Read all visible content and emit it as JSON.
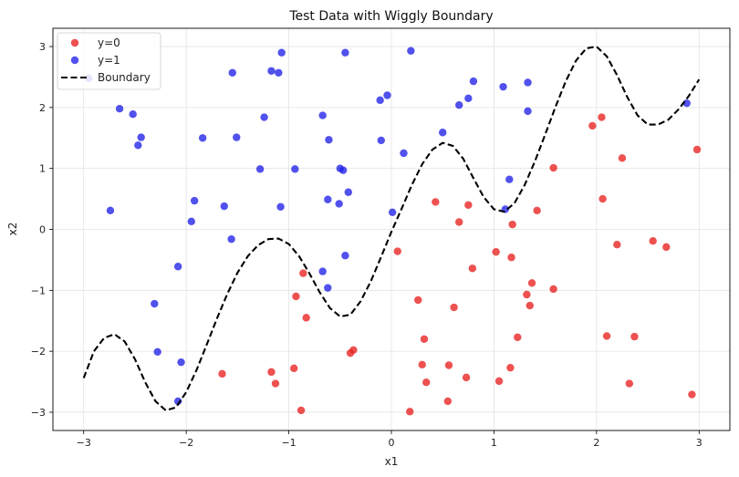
{
  "chart_data": {
    "type": "scatter",
    "title": "Test Data with Wiggly Boundary",
    "xlabel": "x1",
    "ylabel": "x2",
    "xlim": [
      -3.3,
      3.3
    ],
    "ylim": [
      -3.3,
      3.3
    ],
    "xticks": [
      -3,
      -2,
      -1,
      0,
      1,
      2,
      3
    ],
    "yticks": [
      -3,
      -2,
      -1,
      0,
      1,
      2,
      3
    ],
    "grid": true,
    "legend_position": "top-left",
    "series": [
      {
        "name": "y=0",
        "kind": "points",
        "color": "#e8201f",
        "points": [
          [
            -1.65,
            -2.37
          ],
          [
            -1.17,
            -2.34
          ],
          [
            -1.13,
            -2.53
          ],
          [
            -0.95,
            -2.28
          ],
          [
            -0.88,
            -2.97
          ],
          [
            -0.93,
            -1.1
          ],
          [
            -0.86,
            -0.72
          ],
          [
            -0.83,
            -1.45
          ],
          [
            -0.4,
            -2.03
          ],
          [
            -0.37,
            -1.98
          ],
          [
            0.06,
            -0.36
          ],
          [
            0.18,
            -2.99
          ],
          [
            0.26,
            -1.16
          ],
          [
            0.3,
            -2.22
          ],
          [
            0.32,
            -1.8
          ],
          [
            0.34,
            -2.51
          ],
          [
            0.43,
            0.45
          ],
          [
            0.55,
            -2.82
          ],
          [
            0.56,
            -2.23
          ],
          [
            0.61,
            -1.28
          ],
          [
            0.66,
            0.12
          ],
          [
            0.73,
            -2.43
          ],
          [
            0.75,
            0.4
          ],
          [
            0.79,
            -0.64
          ],
          [
            1.02,
            -0.37
          ],
          [
            1.05,
            -2.49
          ],
          [
            1.16,
            -2.27
          ],
          [
            1.17,
            -0.46
          ],
          [
            1.18,
            0.08
          ],
          [
            1.23,
            -1.77
          ],
          [
            1.32,
            -1.07
          ],
          [
            1.35,
            -1.25
          ],
          [
            1.37,
            -0.88
          ],
          [
            1.42,
            0.31
          ],
          [
            1.58,
            1.01
          ],
          [
            1.58,
            -0.98
          ],
          [
            1.96,
            1.7
          ],
          [
            2.05,
            1.84
          ],
          [
            2.06,
            0.5
          ],
          [
            2.1,
            -1.75
          ],
          [
            2.2,
            -0.25
          ],
          [
            2.25,
            1.17
          ],
          [
            2.32,
            -2.53
          ],
          [
            2.37,
            -1.76
          ],
          [
            2.55,
            -0.19
          ],
          [
            2.68,
            -0.29
          ],
          [
            2.93,
            -2.71
          ],
          [
            2.98,
            1.31
          ]
        ]
      },
      {
        "name": "y=1",
        "kind": "points",
        "color": "#2020e8",
        "points": [
          [
            -2.95,
            2.48
          ],
          [
            -2.74,
            0.31
          ],
          [
            -2.65,
            1.98
          ],
          [
            -2.52,
            1.89
          ],
          [
            -2.47,
            1.38
          ],
          [
            -2.44,
            1.51
          ],
          [
            -2.31,
            -1.22
          ],
          [
            -2.28,
            -2.01
          ],
          [
            -2.08,
            -0.61
          ],
          [
            -2.08,
            -2.82
          ],
          [
            -2.05,
            -2.18
          ],
          [
            -1.95,
            0.13
          ],
          [
            -1.92,
            0.47
          ],
          [
            -1.84,
            1.5
          ],
          [
            -1.63,
            0.38
          ],
          [
            -1.56,
            -0.16
          ],
          [
            -1.55,
            2.57
          ],
          [
            -1.51,
            1.51
          ],
          [
            -1.28,
            0.99
          ],
          [
            -1.24,
            1.84
          ],
          [
            -1.17,
            2.6
          ],
          [
            -1.1,
            2.57
          ],
          [
            -1.08,
            0.37
          ],
          [
            -1.07,
            2.9
          ],
          [
            -0.94,
            0.99
          ],
          [
            -0.67,
            1.87
          ],
          [
            -0.67,
            -0.69
          ],
          [
            -0.62,
            -0.96
          ],
          [
            -0.62,
            0.49
          ],
          [
            -0.61,
            1.47
          ],
          [
            -0.51,
            0.42
          ],
          [
            -0.5,
            1.0
          ],
          [
            -0.47,
            0.97
          ],
          [
            -0.45,
            2.9
          ],
          [
            -0.45,
            -0.43
          ],
          [
            -0.42,
            0.61
          ],
          [
            -0.11,
            2.12
          ],
          [
            -0.1,
            1.46
          ],
          [
            -0.04,
            2.2
          ],
          [
            0.01,
            0.28
          ],
          [
            0.12,
            1.25
          ],
          [
            0.19,
            2.93
          ],
          [
            0.5,
            1.59
          ],
          [
            0.66,
            2.04
          ],
          [
            0.75,
            2.15
          ],
          [
            0.8,
            2.43
          ],
          [
            1.09,
            2.34
          ],
          [
            1.11,
            0.33
          ],
          [
            1.15,
            0.82
          ],
          [
            1.33,
            2.41
          ],
          [
            1.33,
            1.94
          ],
          [
            2.88,
            2.07
          ]
        ]
      },
      {
        "name": "Boundary",
        "kind": "line",
        "color": "#000000",
        "style": "dashed",
        "x": [
          -3.0,
          -2.9,
          -2.8,
          -2.7,
          -2.6,
          -2.5,
          -2.4,
          -2.3,
          -2.2,
          -2.1,
          -2.0,
          -1.9,
          -1.8,
          -1.7,
          -1.6,
          -1.5,
          -1.4,
          -1.3,
          -1.2,
          -1.1,
          -1.0,
          -0.9,
          -0.8,
          -0.7,
          -0.6,
          -0.5,
          -0.4,
          -0.3,
          -0.2,
          -0.1,
          0.0,
          0.1,
          0.2,
          0.3,
          0.4,
          0.5,
          0.6,
          0.7,
          0.8,
          0.9,
          1.0,
          1.1,
          1.2,
          1.3,
          1.4,
          1.5,
          1.6,
          1.7,
          1.8,
          1.9,
          2.0,
          2.1,
          2.2,
          2.3,
          2.4,
          2.5,
          2.6,
          2.7,
          2.8,
          2.9,
          3.0
        ],
        "y": [
          -2.44,
          -2.0,
          -1.78,
          -1.72,
          -1.84,
          -2.13,
          -2.51,
          -2.82,
          -2.97,
          -2.92,
          -2.67,
          -2.31,
          -1.89,
          -1.46,
          -1.06,
          -0.71,
          -0.44,
          -0.26,
          -0.16,
          -0.15,
          -0.24,
          -0.44,
          -0.72,
          -1.03,
          -1.29,
          -1.43,
          -1.4,
          -1.18,
          -0.85,
          -0.45,
          -0.04,
          0.34,
          0.73,
          1.07,
          1.31,
          1.42,
          1.37,
          1.16,
          0.84,
          0.53,
          0.33,
          0.29,
          0.43,
          0.73,
          1.12,
          1.56,
          2.01,
          2.43,
          2.77,
          2.97,
          3.0,
          2.84,
          2.53,
          2.17,
          1.87,
          1.72,
          1.72,
          1.8,
          1.97,
          2.19,
          2.46
        ]
      }
    ]
  }
}
